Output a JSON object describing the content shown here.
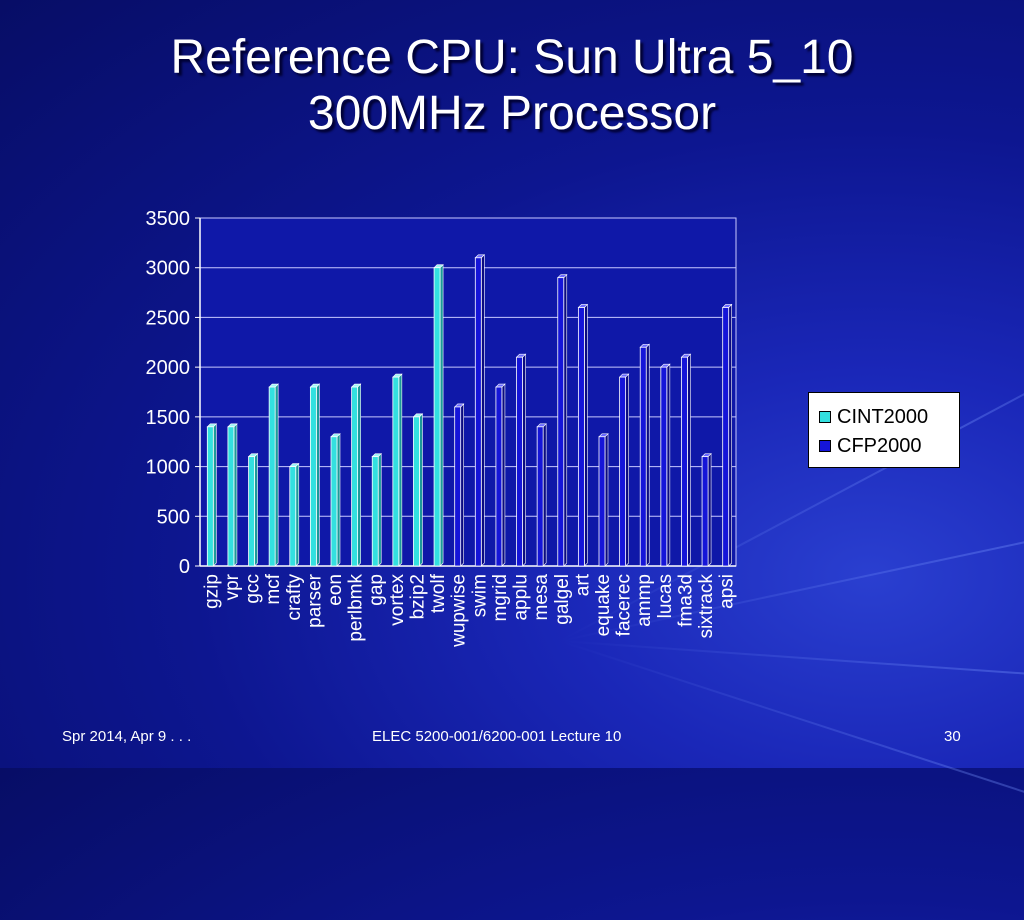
{
  "slide": {
    "title_lines": [
      "Reference CPU: Sun Ultra 5_10",
      "300MHz Processor"
    ],
    "footer_left": "Spr 2014, Apr 9 . . .",
    "footer_center": "ELEC 5200-001/6200-001 Lecture 10",
    "page_number": "30"
  },
  "chart_data": {
    "type": "bar",
    "categories": [
      "gzip",
      "vpr",
      "gcc",
      "mcf",
      "crafty",
      "parser",
      "eon",
      "perlbmk",
      "gap",
      "vortex",
      "bzip2",
      "twolf",
      "wupwise",
      "swim",
      "mgrid",
      "applu",
      "mesa",
      "galgel",
      "art",
      "equake",
      "facerec",
      "ammp",
      "lucas",
      "fma3d",
      "sixtrack",
      "apsi"
    ],
    "series": [
      {
        "name": "CINT2000",
        "color": "#33e0e0",
        "values": [
          1400,
          1400,
          1100,
          1800,
          1000,
          1800,
          1300,
          1800,
          1100,
          1900,
          1500,
          3000,
          null,
          null,
          null,
          null,
          null,
          null,
          null,
          null,
          null,
          null,
          null,
          null,
          null,
          null
        ]
      },
      {
        "name": "CFP2000",
        "color": "#1515d8",
        "values": [
          null,
          null,
          null,
          null,
          null,
          null,
          null,
          null,
          null,
          null,
          null,
          null,
          1600,
          3100,
          1800,
          2100,
          1400,
          2900,
          2600,
          1300,
          1900,
          2200,
          2000,
          2100,
          1100,
          2600
        ]
      }
    ],
    "y_ticks": [
      "0",
      "500",
      "1000",
      "1500",
      "2000",
      "2500",
      "3000",
      "3500"
    ],
    "ylim": [
      0,
      3500
    ],
    "grid": true,
    "legend_position": "right"
  }
}
